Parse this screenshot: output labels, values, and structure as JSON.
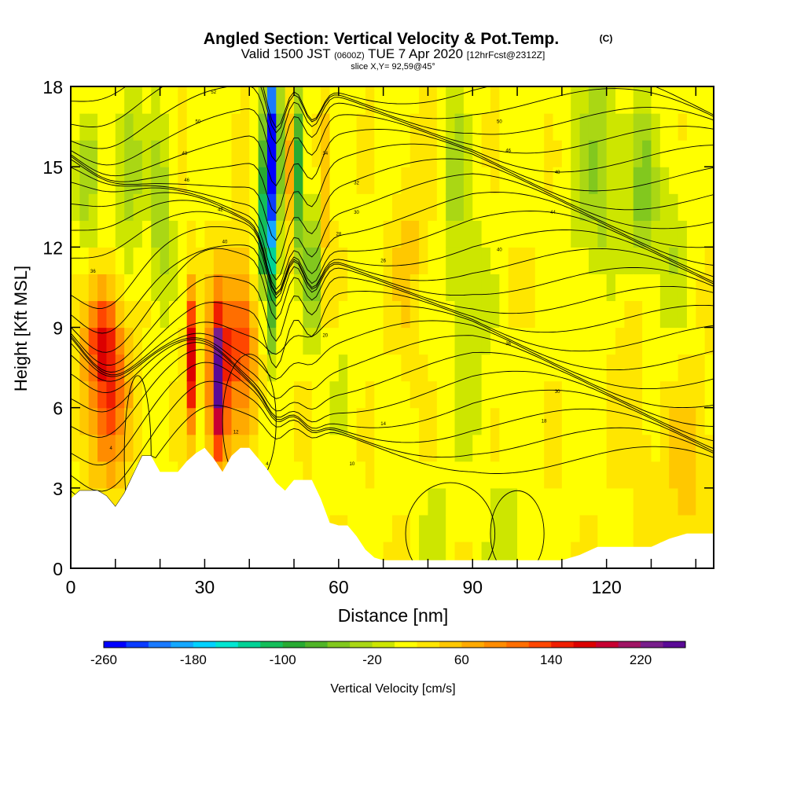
{
  "chart_data": {
    "type": "heatmap",
    "title": "Angled Section: Vertical Velocity & Pot.Temp.",
    "title_unit": "(C)",
    "subtitle_valid": "Valid 1500 JST",
    "subtitle_utc": "(0600Z)",
    "subtitle_date": "TUE 7 Apr 2020",
    "subtitle_fcst": "[12hrFcst@2312Z]",
    "slice_label": "slice X,Y= 92,59@45°",
    "xlabel": "Distance [nm]",
    "ylabel": "Height [Kft MSL]",
    "xlim": [
      0,
      144
    ],
    "ylim": [
      0,
      18
    ],
    "x_ticks": [
      0,
      30,
      60,
      90,
      120
    ],
    "y_ticks": [
      0,
      3,
      6,
      9,
      12,
      15,
      18
    ],
    "colorbar": {
      "label": "Vertical Velocity [cm/s]",
      "min": -260,
      "max": 260,
      "step": 20,
      "tick_values": [
        -260,
        -180,
        -100,
        -20,
        60,
        140,
        220
      ],
      "colors": [
        "#0000ff",
        "#0a3cff",
        "#1a7aff",
        "#14a8ff",
        "#00d2ff",
        "#00e6d2",
        "#00d296",
        "#14be5a",
        "#28aa32",
        "#50b428",
        "#82c81e",
        "#aad714",
        "#cde600",
        "#ffff00",
        "#ffe600",
        "#ffc800",
        "#ffaa00",
        "#ff8c00",
        "#ff6e00",
        "#ff4600",
        "#f01e00",
        "#dc0000",
        "#c80032",
        "#a01464",
        "#781e8c",
        "#5a0a96"
      ]
    },
    "cells_x_step_nm": 2,
    "cells_y_step_kft": 1,
    "terrain_top_kft": [
      {
        "x": 0,
        "h": 2.6
      },
      {
        "x": 2,
        "h": 2.9
      },
      {
        "x": 6,
        "h": 2.9
      },
      {
        "x": 8,
        "h": 2.7
      },
      {
        "x": 10,
        "h": 2.3
      },
      {
        "x": 12,
        "h": 2.8
      },
      {
        "x": 14,
        "h": 3.5
      },
      {
        "x": 16,
        "h": 4.2
      },
      {
        "x": 18,
        "h": 4.2
      },
      {
        "x": 20,
        "h": 3.6
      },
      {
        "x": 22,
        "h": 3.6
      },
      {
        "x": 24,
        "h": 3.6
      },
      {
        "x": 26,
        "h": 4.0
      },
      {
        "x": 28,
        "h": 4.3
      },
      {
        "x": 30,
        "h": 4.5
      },
      {
        "x": 32,
        "h": 4.1
      },
      {
        "x": 34,
        "h": 3.6
      },
      {
        "x": 36,
        "h": 4.2
      },
      {
        "x": 38,
        "h": 4.5
      },
      {
        "x": 40,
        "h": 4.5
      },
      {
        "x": 42,
        "h": 4.1
      },
      {
        "x": 44,
        "h": 3.7
      },
      {
        "x": 46,
        "h": 3.2
      },
      {
        "x": 48,
        "h": 2.9
      },
      {
        "x": 50,
        "h": 3.3
      },
      {
        "x": 52,
        "h": 3.3
      },
      {
        "x": 54,
        "h": 3.3
      },
      {
        "x": 56,
        "h": 2.6
      },
      {
        "x": 58,
        "h": 1.7
      },
      {
        "x": 60,
        "h": 1.6
      },
      {
        "x": 62,
        "h": 1.6
      },
      {
        "x": 64,
        "h": 1.2
      },
      {
        "x": 66,
        "h": 0.7
      },
      {
        "x": 68,
        "h": 0.4
      },
      {
        "x": 70,
        "h": 0.3
      },
      {
        "x": 80,
        "h": 0.3
      },
      {
        "x": 90,
        "h": 0.3
      },
      {
        "x": 100,
        "h": 0.3
      },
      {
        "x": 110,
        "h": 0.3
      },
      {
        "x": 114,
        "h": 0.5
      },
      {
        "x": 118,
        "h": 0.8
      },
      {
        "x": 122,
        "h": 0.8
      },
      {
        "x": 126,
        "h": 0.8
      },
      {
        "x": 130,
        "h": 0.8
      },
      {
        "x": 134,
        "h": 1.1
      },
      {
        "x": 138,
        "h": 1.3
      },
      {
        "x": 144,
        "h": 1.3
      }
    ],
    "contour_labels": [
      {
        "text": "52",
        "x": 32,
        "y": 17.8
      },
      {
        "text": "50",
        "x": 28.5,
        "y": 16.7
      },
      {
        "text": "48",
        "x": 25.5,
        "y": 15.5
      },
      {
        "text": "46",
        "x": 26,
        "y": 14.5
      },
      {
        "text": "42",
        "x": 33.5,
        "y": 13.4
      },
      {
        "text": "40",
        "x": 34.5,
        "y": 12.2
      },
      {
        "text": "36",
        "x": 5,
        "y": 11.1
      },
      {
        "text": "34",
        "x": 57,
        "y": 15.5
      },
      {
        "text": "32",
        "x": 64,
        "y": 14.4
      },
      {
        "text": "30",
        "x": 64,
        "y": 13.3
      },
      {
        "text": "28",
        "x": 60,
        "y": 12.5
      },
      {
        "text": "26",
        "x": 70,
        "y": 11.5
      },
      {
        "text": "50",
        "x": 96,
        "y": 16.7
      },
      {
        "text": "46",
        "x": 98,
        "y": 15.6
      },
      {
        "text": "48",
        "x": 109,
        "y": 14.8
      },
      {
        "text": "44",
        "x": 108,
        "y": 13.3
      },
      {
        "text": "40",
        "x": 96,
        "y": 11.9
      },
      {
        "text": "36",
        "x": 98,
        "y": 8.4
      },
      {
        "text": "20",
        "x": 57,
        "y": 8.7
      },
      {
        "text": "30",
        "x": 109,
        "y": 6.6
      },
      {
        "text": "14",
        "x": 70,
        "y": 5.4
      },
      {
        "text": "18",
        "x": 106,
        "y": 5.5
      },
      {
        "text": "12",
        "x": 37,
        "y": 5.1
      },
      {
        "text": "10",
        "x": 63,
        "y": 3.9
      },
      {
        "text": "4",
        "x": 44,
        "y": 3.9
      },
      {
        "text": "4",
        "x": 9,
        "y": 4.5
      }
    ]
  }
}
